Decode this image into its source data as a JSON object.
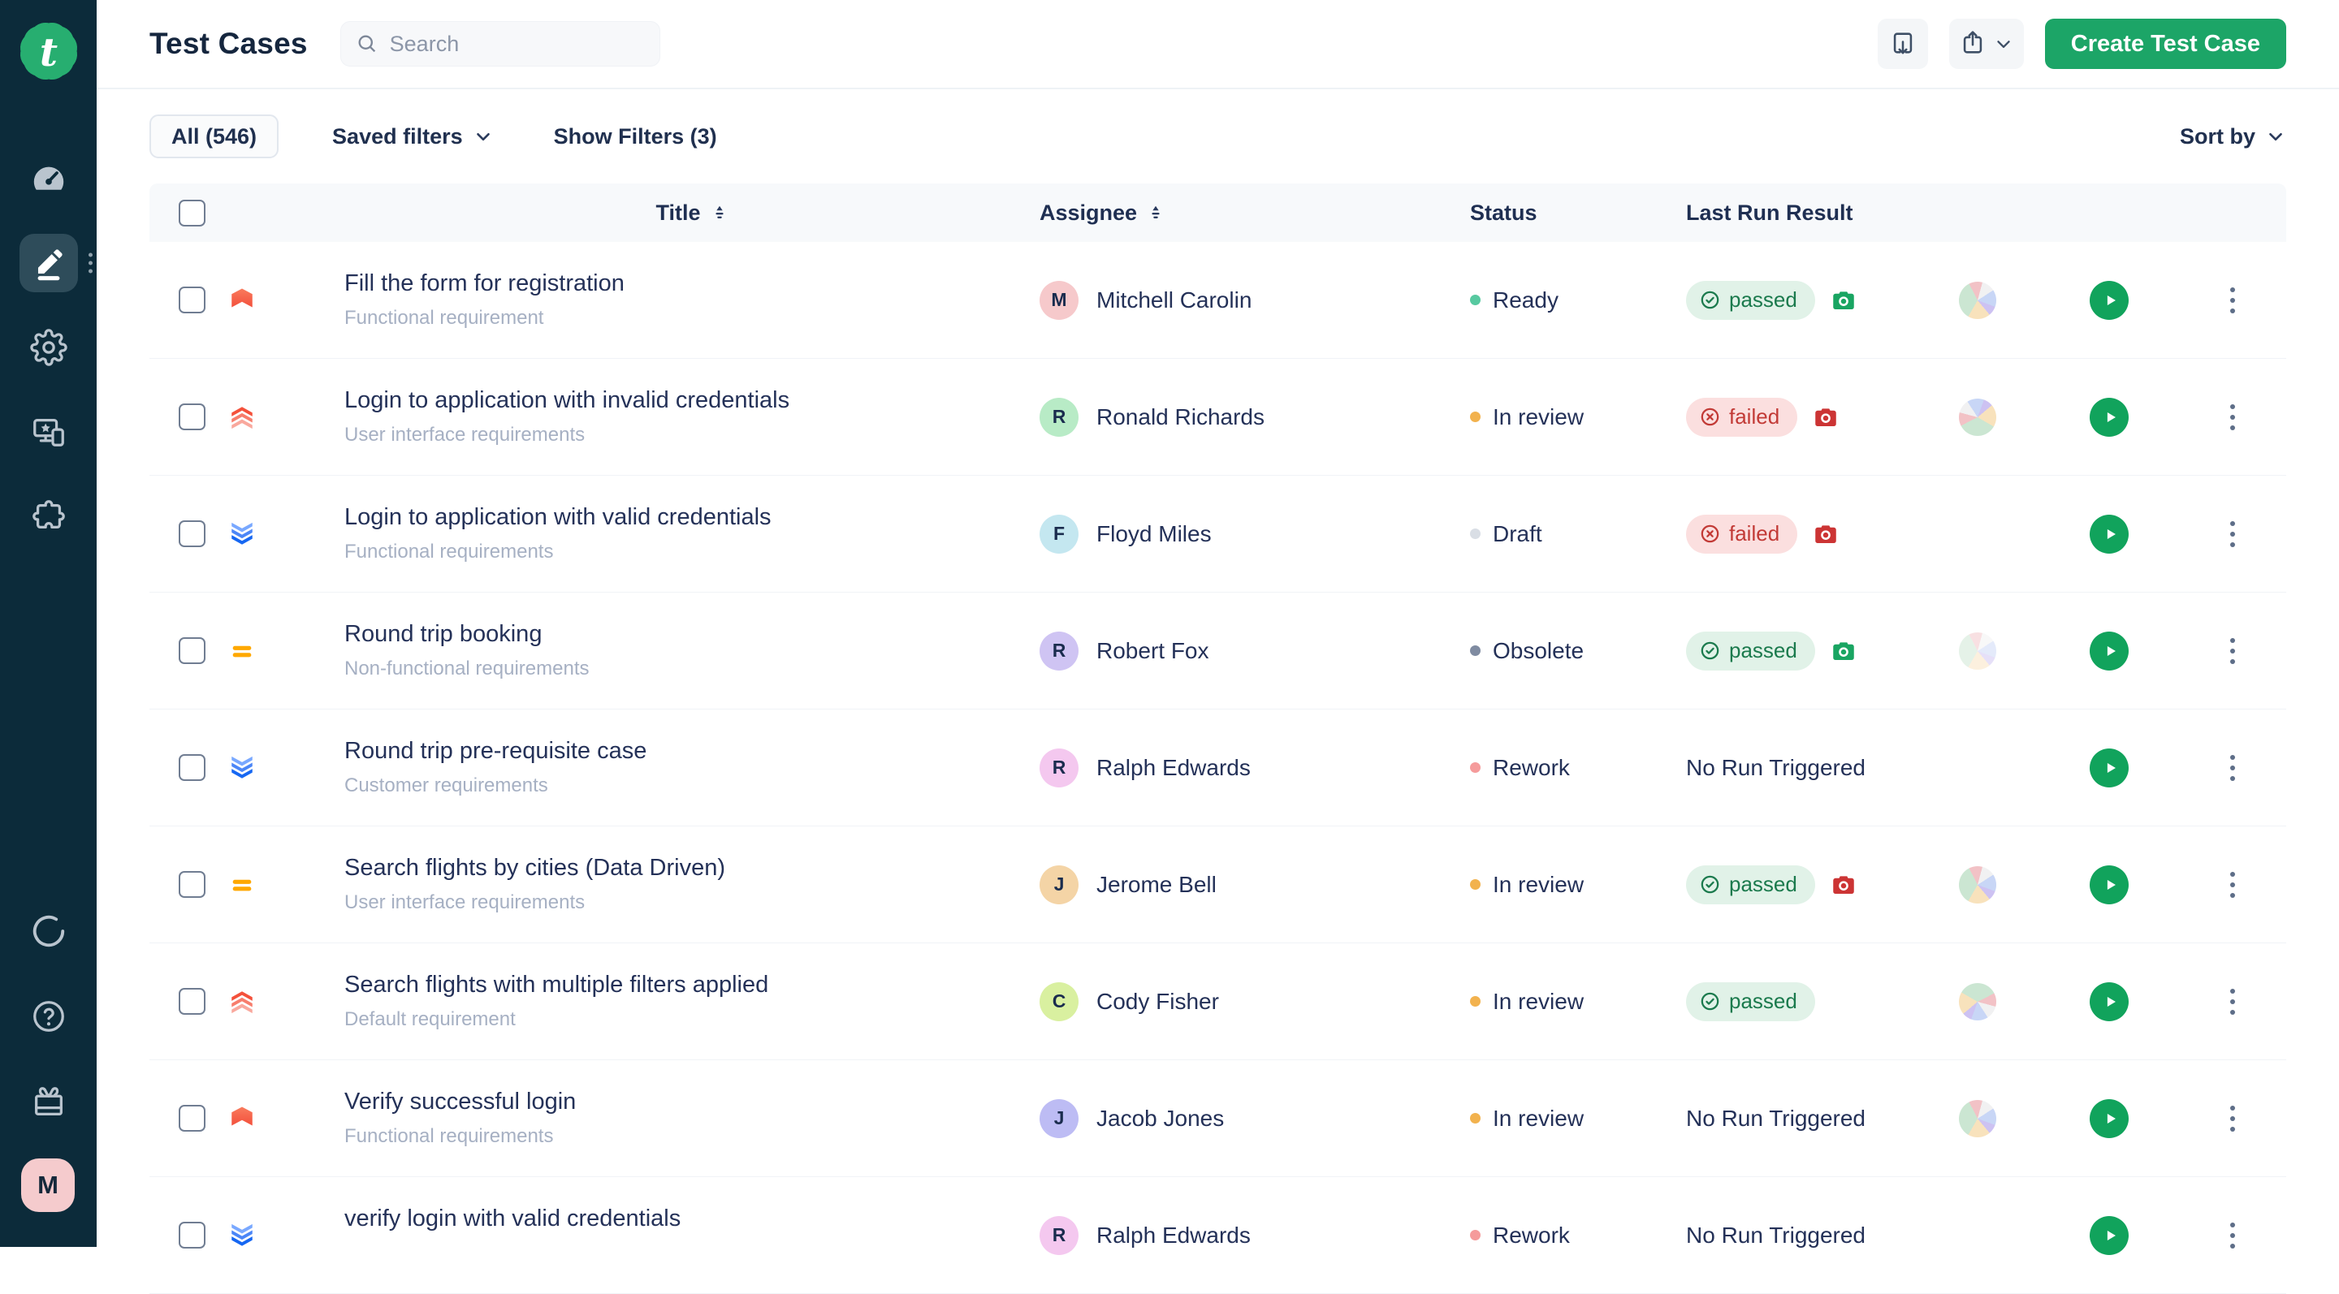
{
  "sidebar": {
    "bg": "#0C2B3A",
    "logo_letter": "t",
    "logo_color": "#27AE70",
    "nav": [
      {
        "name": "dashboard",
        "icon": "speedometer-icon",
        "active": false
      },
      {
        "name": "test-cases",
        "icon": "pencil-icon",
        "active": true
      },
      {
        "name": "settings",
        "icon": "gear-icon",
        "active": false
      },
      {
        "name": "test-devices",
        "icon": "devices-icon",
        "active": false
      },
      {
        "name": "integrations",
        "icon": "puzzle-icon",
        "active": false
      }
    ],
    "nav_bottom": [
      {
        "name": "sync",
        "icon": "spinner-icon"
      },
      {
        "name": "help",
        "icon": "question-icon"
      },
      {
        "name": "whats-new",
        "icon": "gift-icon"
      }
    ],
    "user_initial": "M",
    "user_color": "#F5CBCD"
  },
  "header": {
    "title": "Test Cases",
    "search_placeholder": "Search",
    "create_label": "Create Test Case",
    "accent_green": "#1CA567",
    "actions": [
      {
        "name": "import",
        "icon": "import-icon"
      },
      {
        "name": "export",
        "icon": "export-icon",
        "has_chevron": true
      }
    ]
  },
  "filters": {
    "all_label": "All (546)",
    "saved_label": "Saved filters",
    "show_label": "Show Filters (3)",
    "sort_label": "Sort by"
  },
  "table": {
    "columns": [
      "Title",
      "Assignee",
      "Status",
      "Last Run Result"
    ],
    "result_colors": {
      "passed_bg": "#E1F2E8",
      "passed_fg": "#1B7A4D",
      "failed_bg": "#FBDFDF",
      "failed_fg": "#C23A36",
      "camera_green": "#19A562",
      "camera_red": "#CC3434"
    },
    "rows": [
      {
        "title": "Fill the form for registration",
        "subtitle": "Functional requirement",
        "priority": "highest",
        "assignee_initial": "M",
        "assignee_name": "Mitchell Carolin",
        "assignee_color": "#F6C9CB",
        "status": "Ready",
        "status_color": "#57C9A0",
        "result_type": "passed",
        "result_label": "passed",
        "camera": "green",
        "pie": "normal",
        "pie_rotate": 210
      },
      {
        "title": "Login to application with invalid credentials",
        "subtitle": "User interface requirements",
        "priority": "high",
        "assignee_initial": "R",
        "assignee_name": "Ronald Richards",
        "assignee_color": "#B8EBC6",
        "status": "In review",
        "status_color": "#F2B24E",
        "result_type": "failed",
        "result_label": "failed",
        "camera": "red",
        "pie": "normal",
        "pie_rotate": 120
      },
      {
        "title": "Login to application with valid credentials",
        "subtitle": "Functional requirements",
        "priority": "low",
        "assignee_initial": "F",
        "assignee_name": "Floyd Miles",
        "assignee_color": "#C4E7F0",
        "status": "Draft",
        "status_color": "#D9DEE5",
        "result_type": "failed",
        "result_label": "failed",
        "camera": "red",
        "pie": "none",
        "pie_rotate": 0
      },
      {
        "title": "Round trip booking",
        "subtitle": "Non-functional requirements",
        "priority": "medium",
        "assignee_initial": "R",
        "assignee_name": "Robert Fox",
        "assignee_color": "#CFC4F3",
        "status": "Obsolete",
        "status_color": "#7F8BA1",
        "result_type": "passed",
        "result_label": "passed",
        "camera": "green",
        "pie": "faded",
        "pie_rotate": 210
      },
      {
        "title": "Round trip pre-requisite case",
        "subtitle": "Customer requirements",
        "priority": "low",
        "assignee_initial": "R",
        "assignee_name": "Ralph Edwards",
        "assignee_color": "#F4C8EF",
        "status": "Rework",
        "status_color": "#F59B9B",
        "result_type": "none",
        "result_label": "No Run Triggered",
        "camera": "none",
        "pie": "none",
        "pie_rotate": 0
      },
      {
        "title": "Search flights by cities (Data Driven)",
        "subtitle": "User interface requirements",
        "priority": "medium",
        "assignee_initial": "J",
        "assignee_name": "Jerome Bell",
        "assignee_color": "#F4D4A6",
        "status": "In review",
        "status_color": "#F2B24E",
        "result_type": "passed",
        "result_label": "passed",
        "camera": "red",
        "pie": "normal",
        "pie_rotate": 210
      },
      {
        "title": "Search flights with multiple filters applied",
        "subtitle": "Default requirement",
        "priority": "high",
        "assignee_initial": "C",
        "assignee_name": "Cody Fisher",
        "assignee_color": "#D9F0A0",
        "status": "In review",
        "status_color": "#F2B24E",
        "result_type": "passed",
        "result_label": "passed",
        "camera": "none",
        "pie": "normal",
        "pie_rotate": 300
      },
      {
        "title": "Verify successful login",
        "subtitle": "Functional requirements",
        "priority": "highest",
        "assignee_initial": "J",
        "assignee_name": "Jacob Jones",
        "assignee_color": "#BDBCF4",
        "status": "In review",
        "status_color": "#F2B24E",
        "result_type": "none",
        "result_label": "No Run Triggered",
        "camera": "none",
        "pie": "normal",
        "pie_rotate": 210
      },
      {
        "title": "verify login with valid credentials",
        "subtitle": "",
        "priority": "low",
        "assignee_initial": "R",
        "assignee_name": "Ralph Edwards",
        "assignee_color": "#F4C8EF",
        "status": "Rework",
        "status_color": "#F59B9B",
        "result_type": "none",
        "result_label": "No Run Triggered",
        "camera": "none",
        "pie": "none",
        "pie_rotate": 0
      }
    ]
  }
}
